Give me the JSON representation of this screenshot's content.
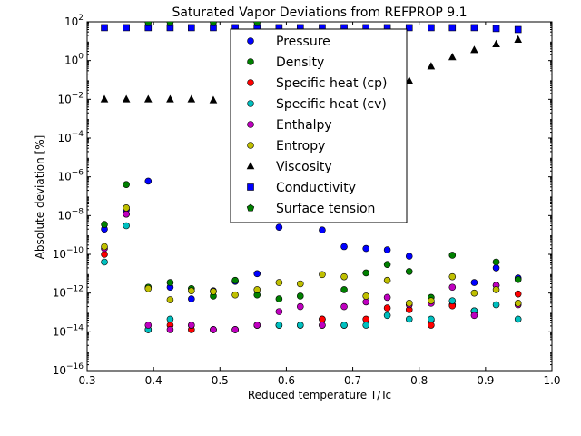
{
  "chart_data": {
    "type": "scatter",
    "title": "Saturated Vapor Deviations from REFPROP 9.1",
    "xlabel": "Reduced temperature T/Tc",
    "ylabel": "Absolute deviation [%]",
    "xlim": [
      0.3,
      1.0
    ],
    "ylim_exp": [
      -16,
      2
    ],
    "yscale": "log",
    "grid": false,
    "legend_position": "upper-center",
    "x_ticks": [
      "0.3",
      "0.4",
      "0.5",
      "0.6",
      "0.7",
      "0.8",
      "0.9",
      "1.0"
    ],
    "x_tick_values": [
      0.3,
      0.4,
      0.5,
      0.6,
      0.7,
      0.8,
      0.9,
      1.0
    ],
    "y_tick_exponents": [
      -16,
      -14,
      -12,
      -10,
      -8,
      -6,
      -4,
      -2,
      0,
      2
    ],
    "series": [
      {
        "name": "Pressure",
        "marker": "circle",
        "color": "#0000ff",
        "x": [
          0.326,
          0.359,
          0.392,
          0.425,
          0.457,
          0.49,
          0.523,
          0.556,
          0.589,
          0.621,
          0.654,
          0.687,
          0.72,
          0.752,
          0.785,
          0.818,
          0.85,
          0.883,
          0.916,
          0.949
        ],
        "y": [
          2e-09,
          2e-08,
          6e-07,
          2e-12,
          5e-13,
          1.3e-12,
          4e-12,
          1e-11,
          2.5e-09,
          6e-09,
          1.8e-09,
          2.5e-10,
          2e-10,
          1.7e-10,
          8e-11,
          4e-14,
          2.5e-13,
          3.5e-12,
          2e-11,
          6e-12
        ]
      },
      {
        "name": "Density",
        "marker": "circle",
        "color": "#008000",
        "x": [
          0.326,
          0.359,
          0.392,
          0.425,
          0.457,
          0.49,
          0.523,
          0.556,
          0.589,
          0.621,
          0.654,
          0.687,
          0.72,
          0.752,
          0.785,
          0.818,
          0.85,
          0.883,
          0.916,
          0.949
        ],
        "y": [
          3.5e-09,
          4e-07,
          2e-12,
          3.5e-12,
          1.7e-12,
          7e-13,
          4.5e-12,
          8e-13,
          5e-13,
          7e-13,
          4.5e-14,
          1.5e-12,
          1.1e-11,
          3e-11,
          1.3e-11,
          6e-13,
          9e-11,
          1.2e-13,
          4e-11,
          5e-12
        ]
      },
      {
        "name": "Specific heat (cp)",
        "marker": "circle",
        "color": "#ff0000",
        "x": [
          0.326,
          0.359,
          0.392,
          0.425,
          0.457,
          0.49,
          0.523,
          0.556,
          0.589,
          0.621,
          0.654,
          0.687,
          0.72,
          0.752,
          0.785,
          0.818,
          0.85,
          0.883,
          0.916,
          0.949
        ],
        "y": [
          1e-10,
          1.2e-08,
          1.3e-14,
          2.2e-14,
          1.3e-14,
          1.3e-14,
          1.3e-14,
          2.2e-14,
          2.2e-14,
          2.2e-14,
          4.5e-14,
          2.2e-14,
          4.5e-14,
          1.7e-13,
          1.4e-13,
          2.2e-14,
          2.2e-13,
          1.1e-13,
          2.5e-12,
          9e-13
        ]
      },
      {
        "name": "Specific heat (cv)",
        "marker": "circle",
        "color": "#00bfbf",
        "x": [
          0.326,
          0.359,
          0.392,
          0.425,
          0.457,
          0.49,
          0.523,
          0.556,
          0.589,
          0.621,
          0.654,
          0.687,
          0.72,
          0.752,
          0.785,
          0.818,
          0.85,
          0.883,
          0.916,
          0.949
        ],
        "y": [
          4e-11,
          3e-09,
          1.3e-14,
          4.5e-14,
          2.2e-14,
          1.3e-14,
          1.3e-14,
          2.2e-14,
          2.2e-14,
          2.2e-14,
          2.2e-14,
          2.2e-14,
          2.2e-14,
          7e-14,
          4.5e-14,
          4.5e-14,
          4e-13,
          1.2e-13,
          2.5e-13,
          4.5e-14
        ]
      },
      {
        "name": "Enthalpy",
        "marker": "circle",
        "color": "#bf00bf",
        "x": [
          0.326,
          0.359,
          0.392,
          0.425,
          0.457,
          0.49,
          0.523,
          0.556,
          0.589,
          0.621,
          0.654,
          0.687,
          0.72,
          0.752,
          0.785,
          0.818,
          0.85,
          0.883,
          0.916,
          0.949
        ],
        "y": [
          2e-10,
          1.2e-08,
          2.2e-14,
          1.3e-14,
          2.2e-14,
          1.3e-14,
          1.3e-14,
          2.2e-14,
          1.1e-13,
          2e-13,
          2.2e-14,
          2e-13,
          3.5e-13,
          6e-13,
          2.5e-13,
          3e-13,
          2e-12,
          7e-14,
          2.5e-12,
          2.5e-13
        ]
      },
      {
        "name": "Entropy",
        "marker": "circle",
        "color": "#bfbf00",
        "x": [
          0.326,
          0.359,
          0.392,
          0.425,
          0.457,
          0.49,
          0.523,
          0.556,
          0.589,
          0.621,
          0.654,
          0.687,
          0.72,
          0.752,
          0.785,
          0.818,
          0.85,
          0.883,
          0.916,
          0.949
        ],
        "y": [
          2.5e-10,
          2.5e-08,
          1.7e-12,
          4.5e-13,
          1.3e-12,
          1.2e-12,
          8e-13,
          1.5e-12,
          3.5e-12,
          3e-12,
          9e-12,
          7e-12,
          7e-13,
          4.5e-12,
          3e-13,
          4e-13,
          7e-12,
          1e-12,
          1.5e-12,
          3e-13
        ]
      },
      {
        "name": "Viscosity",
        "marker": "triangle",
        "color": "#000000",
        "x": [
          0.326,
          0.359,
          0.392,
          0.425,
          0.457,
          0.49,
          0.523,
          0.556,
          0.589,
          0.621,
          0.654,
          0.687,
          0.72,
          0.752,
          0.785,
          0.818,
          0.85,
          0.883,
          0.916,
          0.949
        ],
        "y": [
          0.01,
          0.01,
          0.01,
          0.01,
          0.01,
          0.009,
          0.01,
          0.01,
          0.01,
          0.01,
          0.01,
          0.02,
          0.04,
          0.08,
          0.09,
          0.5,
          1.5,
          3.5,
          7,
          12
        ]
      },
      {
        "name": "Conductivity",
        "marker": "square",
        "color": "#0000ff",
        "x": [
          0.326,
          0.359,
          0.392,
          0.425,
          0.457,
          0.49,
          0.523,
          0.556,
          0.589,
          0.621,
          0.654,
          0.687,
          0.72,
          0.752,
          0.785,
          0.818,
          0.85,
          0.883,
          0.916,
          0.949
        ],
        "y": [
          50,
          50,
          50,
          50,
          50,
          50,
          50,
          50,
          50,
          50,
          50,
          50,
          50,
          50,
          50,
          50,
          50,
          50,
          45,
          40
        ]
      },
      {
        "name": "Surface tension",
        "marker": "pentagon",
        "color": "#008000",
        "x": [
          0.392,
          0.425,
          0.49,
          0.556
        ],
        "y": [
          90,
          90,
          90,
          90
        ]
      }
    ]
  }
}
